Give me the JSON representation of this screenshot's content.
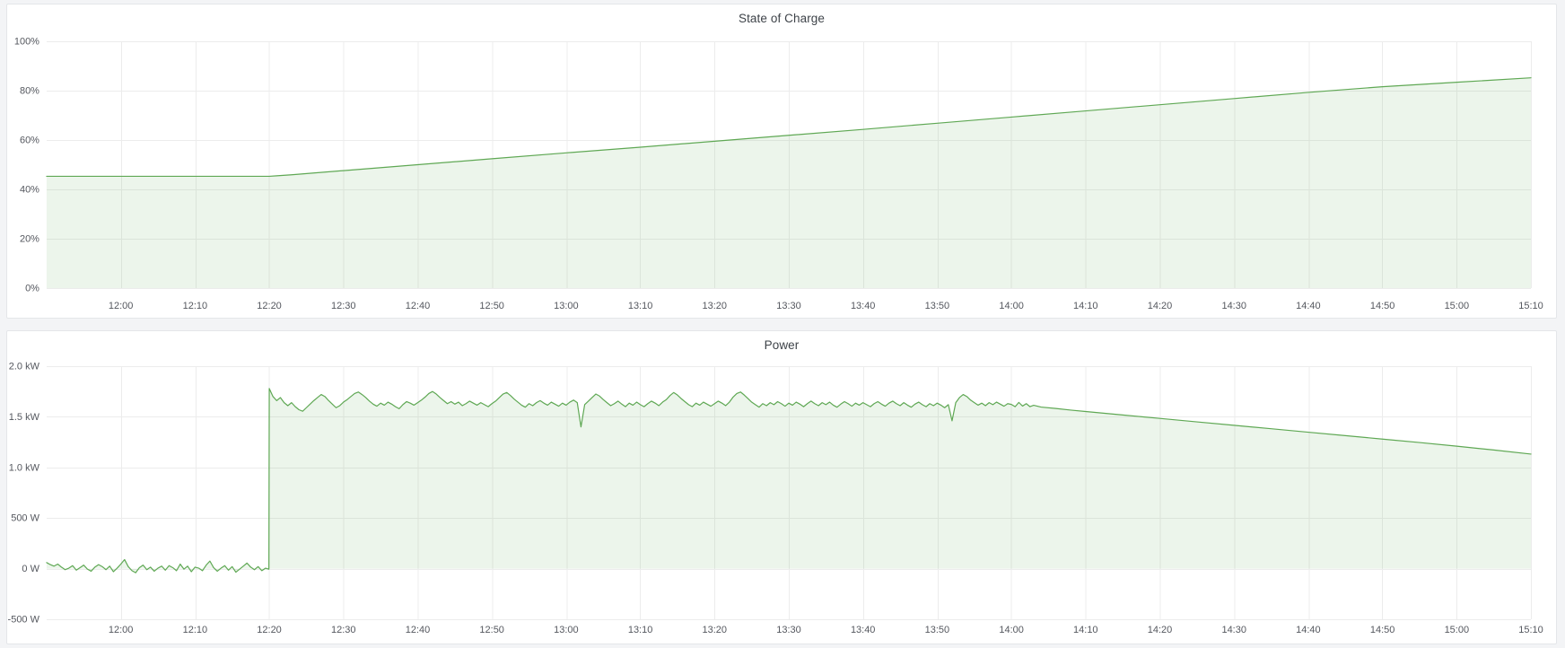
{
  "page": {
    "background": "#f3f4f6",
    "panel_background": "#ffffff",
    "panel_border": "#e4e6e9",
    "grid_color": "#ececec",
    "tick_text_color": "#54575e",
    "title_text_color": "#3e4349"
  },
  "chart_data": [
    {
      "type": "area",
      "title": "State of Charge",
      "xlabel": "",
      "ylabel": "",
      "legend": false,
      "grid": true,
      "line_color": "#5fa854",
      "fill_color": "rgba(86,166,75,0.11)",
      "xlim": [
        0,
        200
      ],
      "ylim": [
        0,
        100
      ],
      "x_time_start": "11:50",
      "x_ticks": [
        {
          "t": 10,
          "label": "12:00"
        },
        {
          "t": 20,
          "label": "12:10"
        },
        {
          "t": 30,
          "label": "12:20"
        },
        {
          "t": 40,
          "label": "12:30"
        },
        {
          "t": 50,
          "label": "12:40"
        },
        {
          "t": 60,
          "label": "12:50"
        },
        {
          "t": 70,
          "label": "13:00"
        },
        {
          "t": 80,
          "label": "13:10"
        },
        {
          "t": 90,
          "label": "13:20"
        },
        {
          "t": 100,
          "label": "13:30"
        },
        {
          "t": 110,
          "label": "13:40"
        },
        {
          "t": 120,
          "label": "13:50"
        },
        {
          "t": 130,
          "label": "14:00"
        },
        {
          "t": 140,
          "label": "14:10"
        },
        {
          "t": 150,
          "label": "14:20"
        },
        {
          "t": 160,
          "label": "14:30"
        },
        {
          "t": 170,
          "label": "14:40"
        },
        {
          "t": 180,
          "label": "14:50"
        },
        {
          "t": 190,
          "label": "15:00"
        },
        {
          "t": 200,
          "label": "15:10"
        }
      ],
      "y_ticks": [
        {
          "v": 0,
          "label": "0%"
        },
        {
          "v": 20,
          "label": "20%"
        },
        {
          "v": 40,
          "label": "40%"
        },
        {
          "v": 60,
          "label": "60%"
        },
        {
          "v": 80,
          "label": "80%"
        },
        {
          "v": 100,
          "label": "100%"
        }
      ],
      "fill_to": 0,
      "series": [
        {
          "name": "State of Charge",
          "segments": [
            {
              "points": [
                [
                  0,
                  45.3
                ],
                [
                  10,
                  45.3
                ],
                [
                  20,
                  45.3
                ],
                [
                  28,
                  45.3
                ],
                [
                  30,
                  45.3
                ],
                [
                  31,
                  45.5
                ],
                [
                  33,
                  45.9
                ],
                [
                  40,
                  47.6
                ],
                [
                  50,
                  50.0
                ],
                [
                  60,
                  52.4
                ],
                [
                  70,
                  54.8
                ],
                [
                  80,
                  57.1
                ],
                [
                  90,
                  59.5
                ],
                [
                  100,
                  61.9
                ],
                [
                  110,
                  64.3
                ],
                [
                  120,
                  66.8
                ],
                [
                  130,
                  69.3
                ],
                [
                  140,
                  71.8
                ],
                [
                  150,
                  74.3
                ],
                [
                  160,
                  76.8
                ],
                [
                  170,
                  79.3
                ],
                [
                  180,
                  81.6
                ],
                [
                  190,
                  83.4
                ],
                [
                  200,
                  85.2
                ]
              ]
            }
          ]
        }
      ]
    },
    {
      "type": "area",
      "title": "Power",
      "xlabel": "",
      "ylabel": "",
      "legend": false,
      "grid": true,
      "line_color": "#5fa854",
      "fill_color": "rgba(86,166,75,0.11)",
      "xlim": [
        0,
        200
      ],
      "ylim": [
        -500,
        2000
      ],
      "x_time_start": "11:50",
      "x_ticks": [
        {
          "t": 10,
          "label": "12:00"
        },
        {
          "t": 20,
          "label": "12:10"
        },
        {
          "t": 30,
          "label": "12:20"
        },
        {
          "t": 40,
          "label": "12:30"
        },
        {
          "t": 50,
          "label": "12:40"
        },
        {
          "t": 60,
          "label": "12:50"
        },
        {
          "t": 70,
          "label": "13:00"
        },
        {
          "t": 80,
          "label": "13:10"
        },
        {
          "t": 90,
          "label": "13:20"
        },
        {
          "t": 100,
          "label": "13:30"
        },
        {
          "t": 110,
          "label": "13:40"
        },
        {
          "t": 120,
          "label": "13:50"
        },
        {
          "t": 130,
          "label": "14:00"
        },
        {
          "t": 140,
          "label": "14:10"
        },
        {
          "t": 150,
          "label": "14:20"
        },
        {
          "t": 160,
          "label": "14:30"
        },
        {
          "t": 170,
          "label": "14:40"
        },
        {
          "t": 180,
          "label": "14:50"
        },
        {
          "t": 190,
          "label": "15:00"
        },
        {
          "t": 200,
          "label": "15:10"
        }
      ],
      "y_ticks": [
        {
          "v": -500,
          "label": "-500 W"
        },
        {
          "v": 0,
          "label": "0 W"
        },
        {
          "v": 500,
          "label": "500 W"
        },
        {
          "v": 1000,
          "label": "1.0 kW"
        },
        {
          "v": 1500,
          "label": "1.5 kW"
        },
        {
          "v": 2000,
          "label": "2.0 kW"
        }
      ],
      "fill_to": 0,
      "series": [
        {
          "name": "Power",
          "segments": [
            {
              "t0": 0,
              "dt": 0.5,
              "values": [
                60,
                40,
                25,
                45,
                15,
                -10,
                5,
                30,
                -15,
                10,
                35,
                -5,
                -25,
                15,
                40,
                20,
                -10,
                25,
                -30,
                5,
                45,
                90,
                20,
                -20,
                -40,
                10,
                35,
                -10,
                15,
                -25,
                5,
                25,
                -15,
                30,
                10,
                -20,
                45,
                -5,
                25,
                -30,
                15,
                5,
                -20,
                35,
                75,
                10,
                -25,
                5,
                30,
                -15,
                20,
                -35,
                -5,
                25,
                55,
                15,
                -10,
                20,
                -20,
                5
              ]
            },
            {
              "points": [
                [
                  29.95,
                  -5
                ]
              ]
            },
            {
              "t0": 30,
              "dt": 0.5,
              "values": [
                1780,
                1700,
                1660,
                1690,
                1640,
                1610,
                1640,
                1600,
                1570,
                1555,
                1590,
                1625,
                1660,
                1690,
                1720,
                1700,
                1660,
                1625,
                1590,
                1610,
                1645,
                1670,
                1700,
                1730,
                1745,
                1720,
                1690,
                1655,
                1625,
                1605,
                1635,
                1615,
                1645,
                1625,
                1600,
                1580,
                1620,
                1650,
                1635,
                1615,
                1640,
                1665,
                1695,
                1730,
                1750,
                1725,
                1690,
                1660,
                1630,
                1650,
                1625,
                1645,
                1610,
                1630,
                1655,
                1635,
                1615,
                1640,
                1620,
                1600,
                1630,
                1655,
                1690,
                1725,
                1740,
                1710,
                1675,
                1645,
                1615,
                1595,
                1630,
                1610,
                1640,
                1660,
                1635,
                1615,
                1645,
                1625,
                1605,
                1635,
                1615,
                1645,
                1665,
                1640,
                1400,
                1620,
                1655,
                1690,
                1725,
                1705,
                1670,
                1640,
                1610,
                1630,
                1655,
                1625,
                1600,
                1635,
                1615,
                1645,
                1620,
                1600,
                1630,
                1655,
                1635,
                1610,
                1645,
                1670,
                1710,
                1740,
                1715,
                1680,
                1650,
                1620,
                1600,
                1635,
                1615,
                1645,
                1625,
                1605,
                1630,
                1655,
                1635,
                1610,
                1645,
                1695,
                1730,
                1745,
                1715,
                1680,
                1645,
                1620,
                1595,
                1630,
                1610,
                1640,
                1620,
                1650,
                1630,
                1605,
                1635,
                1615,
                1645,
                1625,
                1600,
                1630,
                1655,
                1630,
                1610,
                1640,
                1620,
                1645,
                1615,
                1595,
                1625,
                1650,
                1630,
                1605,
                1635,
                1615,
                1640,
                1620,
                1600,
                1630,
                1650,
                1625,
                1605,
                1635,
                1655,
                1630,
                1610,
                1640,
                1615,
                1595,
                1625,
                1645,
                1620,
                1600,
                1630,
                1610,
                1635,
                1615,
                1590,
                1620,
                1460,
                1640,
                1690,
                1720,
                1700,
                1665,
                1640,
                1615,
                1635,
                1610,
                1640,
                1620,
                1645,
                1625,
                1605,
                1630
              ]
            },
            {
              "points": [
                [
                  130,
                  1622
                ],
                [
                  130.5,
                  1600
                ],
                [
                  131,
                  1642
                ],
                [
                  131.5,
                  1606
                ],
                [
                  132,
                  1630
                ],
                [
                  132.5,
                  1600
                ],
                [
                  133,
                  1614
                ],
                [
                  134,
                  1596
                ],
                [
                  136,
                  1582
                ],
                [
                  138,
                  1566
                ],
                [
                  140,
                  1552
                ],
                [
                  145,
                  1518
                ],
                [
                  150,
                  1484
                ],
                [
                  155,
                  1450
                ],
                [
                  160,
                  1416
                ],
                [
                  165,
                  1382
                ],
                [
                  170,
                  1348
                ],
                [
                  175,
                  1314
                ],
                [
                  180,
                  1280
                ],
                [
                  185,
                  1246
                ],
                [
                  190,
                  1210
                ],
                [
                  195,
                  1172
                ],
                [
                  200,
                  1132
                ]
              ]
            }
          ]
        }
      ]
    }
  ]
}
